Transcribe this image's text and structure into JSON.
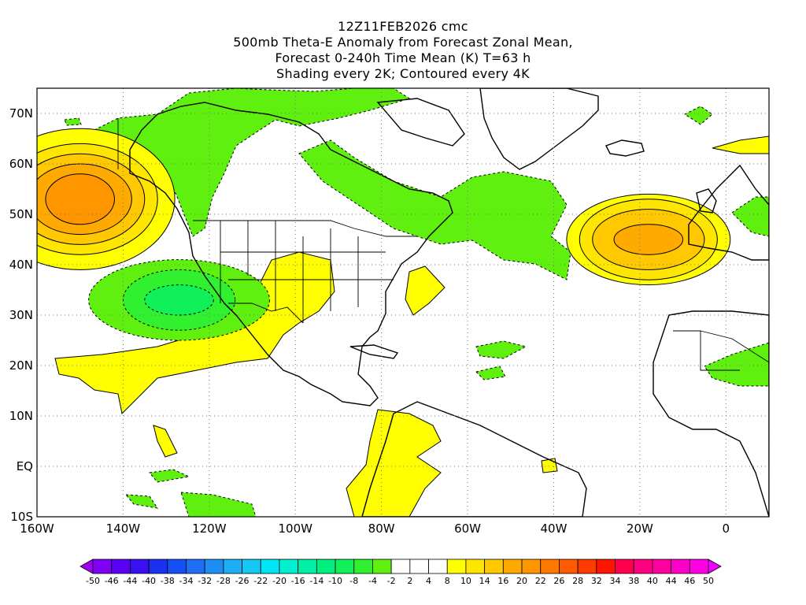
{
  "title": {
    "line1": "12Z11FEB2026 cmc",
    "line2": "500mb Theta-E Anomaly from Forecast Zonal Mean,",
    "line3": "Forecast 0-240h Time Mean (K) T=63 h",
    "line4": "Shading every 2K; Contoured every 4K"
  },
  "map": {
    "projection": "latlon",
    "lon_range": [
      -160,
      10
    ],
    "lat_range": [
      -10,
      75
    ],
    "grid": "dotted",
    "lat_labels": [
      "70N",
      "60N",
      "50N",
      "40N",
      "30N",
      "20N",
      "10N",
      "EQ",
      "10S"
    ],
    "lat_values": [
      70,
      60,
      50,
      40,
      30,
      20,
      10,
      0,
      -10
    ],
    "lon_labels": [
      "160W",
      "140W",
      "120W",
      "100W",
      "80W",
      "60W",
      "40W",
      "20W",
      "0"
    ],
    "lon_values": [
      -160,
      -140,
      -120,
      -100,
      -80,
      -60,
      -40,
      -20,
      0
    ]
  },
  "colorbar": {
    "labels": [
      "-50",
      "-46",
      "-44",
      "-40",
      "-38",
      "-34",
      "-32",
      "-28",
      "-26",
      "-22",
      "-20",
      "-16",
      "-14",
      "-10",
      "-8",
      "-4",
      "-2",
      "2",
      "4",
      "8",
      "10",
      "14",
      "16",
      "20",
      "22",
      "26",
      "28",
      "32",
      "34",
      "38",
      "40",
      "44",
      "46",
      "50"
    ],
    "colors": [
      "#a000f0",
      "#7e00f5",
      "#5a00f5",
      "#3a10f0",
      "#1c30f0",
      "#1450f5",
      "#1e6ef5",
      "#1e8ef5",
      "#1eaef5",
      "#14c8f5",
      "#00e6f5",
      "#00f0d0",
      "#00f0a8",
      "#00f080",
      "#10f058",
      "#30f030",
      "#60f010",
      "#ffffff",
      "#ffffff",
      "#ffffff",
      "#ffff00",
      "#ffe600",
      "#ffc800",
      "#ffaa00",
      "#ff9600",
      "#ff7800",
      "#ff5a00",
      "#ff3c00",
      "#ff1400",
      "#ff0050",
      "#ff0080",
      "#ff00a0",
      "#ff00c8",
      "#ff00e6",
      "#f000ff"
    ]
  },
  "fields": [
    {
      "name": "gulf-of-alaska-warm-anomaly",
      "colors": [
        "#ffff00",
        "#ffe600",
        "#ffc800",
        "#ffaa00",
        "#ff9600"
      ],
      "lon": -150,
      "lat": 53,
      "rx": [
        22,
        18,
        15,
        12,
        8
      ],
      "ry": [
        14,
        11,
        9,
        7,
        5
      ]
    },
    {
      "name": "northeast-pacific-cold-anomaly",
      "colors": [
        "#60f010",
        "#30f030",
        "#10f058"
      ],
      "lon": -127,
      "lat": 33,
      "rx": [
        21,
        13,
        8
      ],
      "ry": [
        8,
        6,
        3
      ]
    },
    {
      "name": "northeast-atlantic-warm-anomaly",
      "colors": [
        "#ffff00",
        "#ffe600",
        "#ffc800",
        "#ffaa00"
      ],
      "lon": -18,
      "lat": 45,
      "rx": [
        19,
        16,
        13,
        8
      ],
      "ry": [
        9,
        8,
        6,
        3
      ]
    }
  ]
}
